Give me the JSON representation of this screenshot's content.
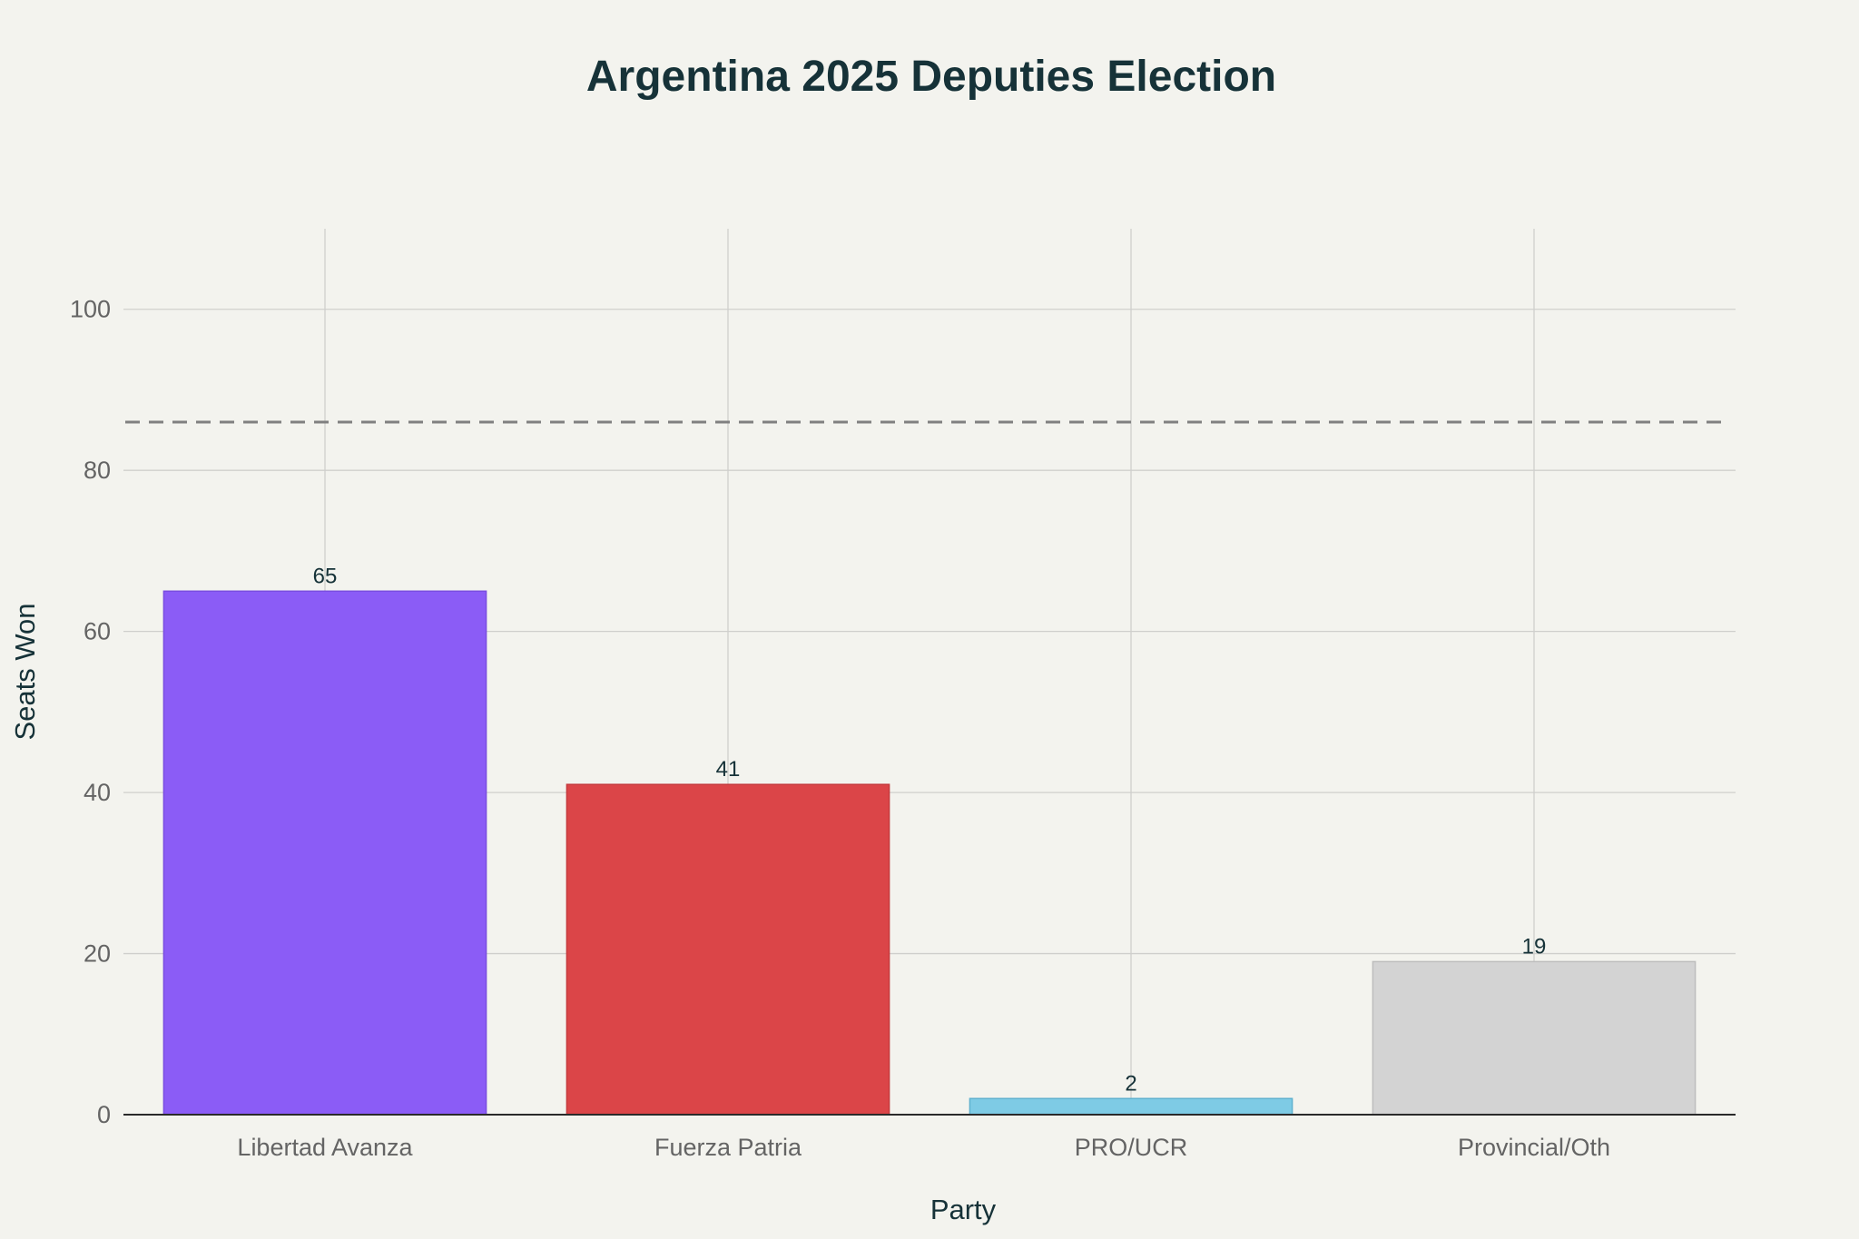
{
  "chart_data": {
    "type": "bar",
    "title": "Argentina 2025 Deputies Election",
    "xlabel": "Party",
    "ylabel": "Seats Won",
    "categories": [
      "Libertad Avanza",
      "Fuerza Patria",
      "PRO/UCR",
      "Provincial/Oth"
    ],
    "values": [
      65,
      41,
      2,
      19
    ],
    "value_labels": [
      "65",
      "41",
      "2",
      "19"
    ],
    "colors": [
      "#8b5cf6",
      "#db4548",
      "#7ecbe5",
      "#d3d3d3"
    ],
    "bar_outline_colors": [
      "#7a4de0",
      "#c53a3d",
      "#5fb1cf",
      "#bdbdbd"
    ],
    "ylim": [
      0,
      110
    ],
    "yticks": [
      0,
      20,
      40,
      60,
      80,
      100
    ],
    "reference_line": 86,
    "grid": true
  }
}
